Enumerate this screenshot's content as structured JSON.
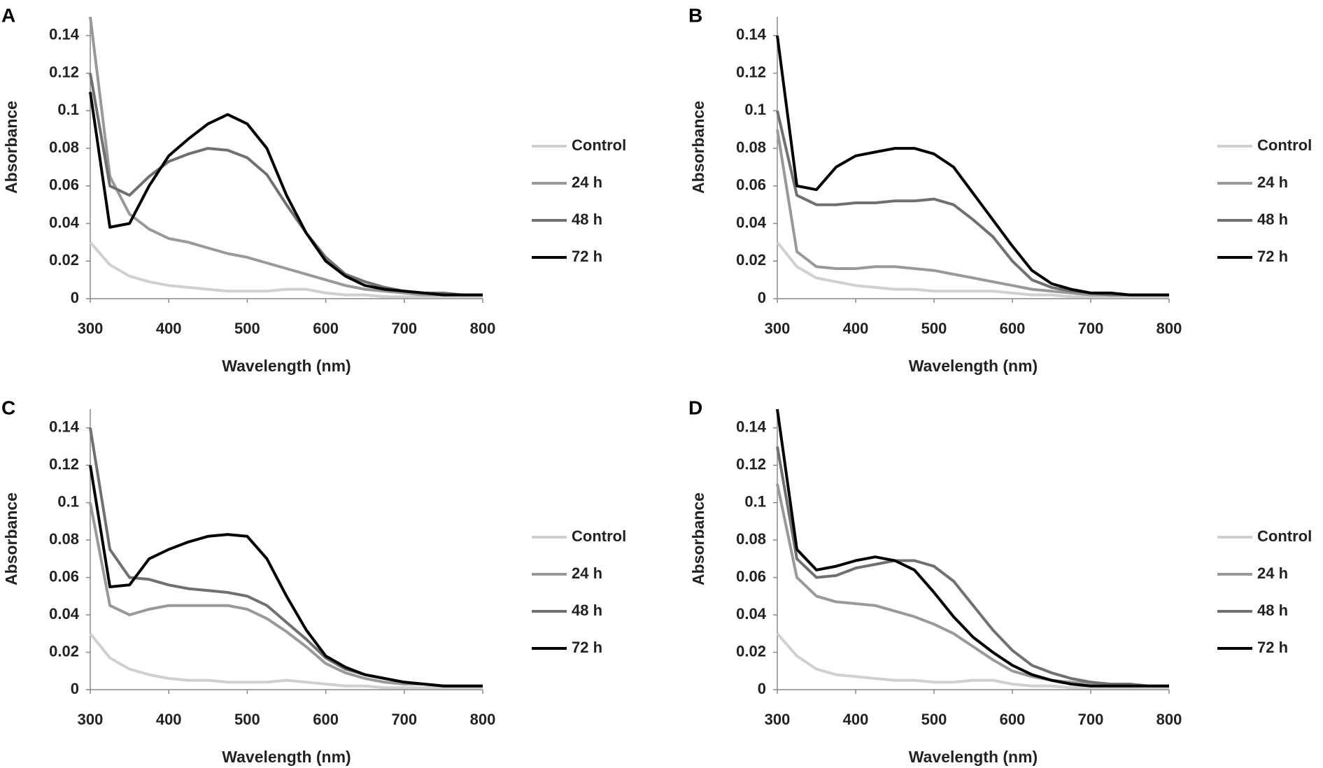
{
  "chart_data": [
    {
      "type": "line",
      "label": "A",
      "xlabel": "Wavelength (nm)",
      "ylabel": "Absorbance",
      "x": [
        300,
        325,
        350,
        375,
        400,
        425,
        450,
        475,
        500,
        525,
        550,
        575,
        600,
        625,
        650,
        675,
        700,
        725,
        750,
        775,
        800
      ],
      "xlim": [
        300,
        800
      ],
      "xticks": [
        300,
        400,
        500,
        600,
        700,
        800
      ],
      "ylim": [
        0,
        0.15
      ],
      "yticks": [
        0,
        0.02,
        0.04,
        0.06,
        0.08,
        0.1,
        0.12,
        0.14
      ],
      "series": [
        {
          "name": "Control",
          "color": "#d0d0d0",
          "values": [
            0.03,
            0.018,
            0.012,
            0.009,
            0.007,
            0.006,
            0.005,
            0.004,
            0.004,
            0.004,
            0.005,
            0.005,
            0.003,
            0.002,
            0.002,
            0.001,
            0.001,
            0.001,
            0.001,
            0.001,
            0.001
          ]
        },
        {
          "name": "24 h",
          "color": "#999999",
          "values": [
            0.15,
            0.065,
            0.045,
            0.037,
            0.032,
            0.03,
            0.027,
            0.024,
            0.022,
            0.019,
            0.016,
            0.013,
            0.01,
            0.007,
            0.005,
            0.004,
            0.003,
            0.002,
            0.002,
            0.002,
            0.002
          ]
        },
        {
          "name": "48 h",
          "color": "#707070",
          "values": [
            0.12,
            0.06,
            0.055,
            0.065,
            0.073,
            0.077,
            0.08,
            0.079,
            0.075,
            0.066,
            0.05,
            0.035,
            0.022,
            0.013,
            0.009,
            0.006,
            0.004,
            0.003,
            0.003,
            0.002,
            0.002
          ]
        },
        {
          "name": "72 h",
          "color": "#000000",
          "values": [
            0.11,
            0.038,
            0.04,
            0.06,
            0.076,
            0.085,
            0.093,
            0.098,
            0.093,
            0.08,
            0.055,
            0.035,
            0.02,
            0.012,
            0.007,
            0.005,
            0.004,
            0.003,
            0.002,
            0.002,
            0.002
          ]
        }
      ]
    },
    {
      "type": "line",
      "label": "B",
      "xlabel": "Wavelength (nm)",
      "ylabel": "Absorbance",
      "x": [
        300,
        325,
        350,
        375,
        400,
        425,
        450,
        475,
        500,
        525,
        550,
        575,
        600,
        625,
        650,
        675,
        700,
        725,
        750,
        775,
        800
      ],
      "xlim": [
        300,
        800
      ],
      "xticks": [
        300,
        400,
        500,
        600,
        700,
        800
      ],
      "ylim": [
        0,
        0.15
      ],
      "yticks": [
        0,
        0.02,
        0.04,
        0.06,
        0.08,
        0.1,
        0.12,
        0.14
      ],
      "series": [
        {
          "name": "Control",
          "color": "#d0d0d0",
          "values": [
            0.03,
            0.017,
            0.011,
            0.009,
            0.007,
            0.006,
            0.005,
            0.005,
            0.004,
            0.004,
            0.004,
            0.004,
            0.003,
            0.002,
            0.002,
            0.001,
            0.001,
            0.001,
            0.001,
            0.001,
            0.001
          ]
        },
        {
          "name": "24 h",
          "color": "#999999",
          "values": [
            0.09,
            0.025,
            0.017,
            0.016,
            0.016,
            0.017,
            0.017,
            0.016,
            0.015,
            0.013,
            0.011,
            0.009,
            0.007,
            0.005,
            0.004,
            0.003,
            0.002,
            0.002,
            0.002,
            0.002,
            0.002
          ]
        },
        {
          "name": "48 h",
          "color": "#707070",
          "values": [
            0.1,
            0.055,
            0.05,
            0.05,
            0.051,
            0.051,
            0.052,
            0.052,
            0.053,
            0.05,
            0.042,
            0.033,
            0.02,
            0.01,
            0.006,
            0.004,
            0.003,
            0.002,
            0.002,
            0.002,
            0.002
          ]
        },
        {
          "name": "72 h",
          "color": "#000000",
          "values": [
            0.14,
            0.06,
            0.058,
            0.07,
            0.076,
            0.078,
            0.08,
            0.08,
            0.077,
            0.07,
            0.056,
            0.042,
            0.028,
            0.015,
            0.008,
            0.005,
            0.003,
            0.003,
            0.002,
            0.002,
            0.002
          ]
        }
      ]
    },
    {
      "type": "line",
      "label": "C",
      "xlabel": "Wavelength (nm)",
      "ylabel": "Absorbance",
      "x": [
        300,
        325,
        350,
        375,
        400,
        425,
        450,
        475,
        500,
        525,
        550,
        575,
        600,
        625,
        650,
        675,
        700,
        725,
        750,
        775,
        800
      ],
      "xlim": [
        300,
        800
      ],
      "xticks": [
        300,
        400,
        500,
        600,
        700,
        800
      ],
      "ylim": [
        0,
        0.15
      ],
      "yticks": [
        0,
        0.02,
        0.04,
        0.06,
        0.08,
        0.1,
        0.12,
        0.14
      ],
      "series": [
        {
          "name": "Control",
          "color": "#d0d0d0",
          "values": [
            0.03,
            0.017,
            0.011,
            0.008,
            0.006,
            0.005,
            0.005,
            0.004,
            0.004,
            0.004,
            0.005,
            0.004,
            0.003,
            0.002,
            0.002,
            0.001,
            0.001,
            0.001,
            0.001,
            0.001,
            0.001
          ]
        },
        {
          "name": "24 h",
          "color": "#999999",
          "values": [
            0.1,
            0.045,
            0.04,
            0.043,
            0.045,
            0.045,
            0.045,
            0.045,
            0.043,
            0.038,
            0.031,
            0.023,
            0.014,
            0.009,
            0.006,
            0.004,
            0.003,
            0.003,
            0.002,
            0.002,
            0.002
          ]
        },
        {
          "name": "48 h",
          "color": "#707070",
          "values": [
            0.14,
            0.075,
            0.06,
            0.059,
            0.056,
            0.054,
            0.053,
            0.052,
            0.05,
            0.045,
            0.036,
            0.027,
            0.017,
            0.011,
            0.008,
            0.006,
            0.004,
            0.003,
            0.002,
            0.002,
            0.002
          ]
        },
        {
          "name": "72 h",
          "color": "#000000",
          "values": [
            0.12,
            0.055,
            0.056,
            0.07,
            0.075,
            0.079,
            0.082,
            0.083,
            0.082,
            0.07,
            0.05,
            0.032,
            0.018,
            0.012,
            0.008,
            0.006,
            0.004,
            0.003,
            0.002,
            0.002,
            0.002
          ]
        }
      ]
    },
    {
      "type": "line",
      "label": "D",
      "xlabel": "Wavelength (nm)",
      "ylabel": "Absorbance",
      "x": [
        300,
        325,
        350,
        375,
        400,
        425,
        450,
        475,
        500,
        525,
        550,
        575,
        600,
        625,
        650,
        675,
        700,
        725,
        750,
        775,
        800
      ],
      "xlim": [
        300,
        800
      ],
      "xticks": [
        300,
        400,
        500,
        600,
        700,
        800
      ],
      "ylim": [
        0,
        0.15
      ],
      "yticks": [
        0,
        0.02,
        0.04,
        0.06,
        0.08,
        0.1,
        0.12,
        0.14
      ],
      "series": [
        {
          "name": "Control",
          "color": "#d0d0d0",
          "values": [
            0.03,
            0.018,
            0.011,
            0.008,
            0.007,
            0.006,
            0.005,
            0.005,
            0.004,
            0.004,
            0.005,
            0.005,
            0.003,
            0.002,
            0.002,
            0.001,
            0.001,
            0.001,
            0.001,
            0.001,
            0.001
          ]
        },
        {
          "name": "24 h",
          "color": "#999999",
          "values": [
            0.11,
            0.06,
            0.05,
            0.047,
            0.046,
            0.045,
            0.042,
            0.039,
            0.035,
            0.03,
            0.023,
            0.016,
            0.01,
            0.007,
            0.005,
            0.004,
            0.003,
            0.002,
            0.002,
            0.002,
            0.002
          ]
        },
        {
          "name": "48 h",
          "color": "#707070",
          "values": [
            0.13,
            0.07,
            0.06,
            0.061,
            0.065,
            0.067,
            0.069,
            0.069,
            0.066,
            0.058,
            0.045,
            0.032,
            0.021,
            0.013,
            0.009,
            0.006,
            0.004,
            0.003,
            0.003,
            0.002,
            0.002
          ]
        },
        {
          "name": "72 h",
          "color": "#000000",
          "values": [
            0.15,
            0.075,
            0.064,
            0.066,
            0.069,
            0.071,
            0.069,
            0.064,
            0.052,
            0.039,
            0.028,
            0.02,
            0.013,
            0.008,
            0.005,
            0.003,
            0.002,
            0.002,
            0.002,
            0.002,
            0.002
          ]
        }
      ]
    }
  ]
}
